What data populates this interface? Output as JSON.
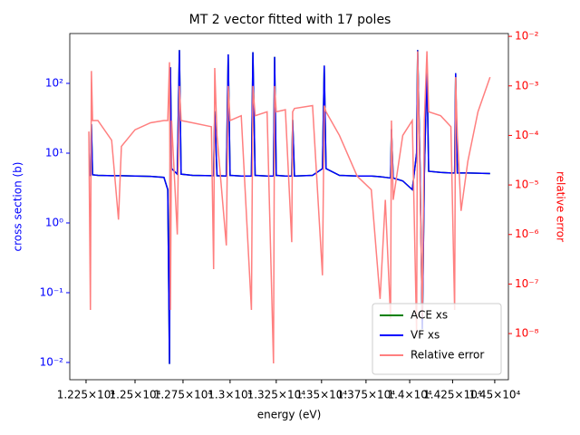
{
  "chart_data": {
    "type": "line",
    "title": "MT 2 vector fitted with 17 poles",
    "xlabel": "energy (eV)",
    "ylabel": "cross section (b)",
    "y2label": "relative error",
    "y_color": "#0000ff",
    "y2_color": "#ff0000",
    "xscale": "log",
    "yscale": "log",
    "y2scale": "log",
    "legend": "lower right",
    "xlim": [
      12168,
      14582
    ],
    "ylim": [
      0.00566,
      518
    ],
    "y2lim": [
      1.17e-09,
      0.0114
    ],
    "xticks": [
      {
        "value": 12250,
        "label": "1.225×10⁴"
      },
      {
        "value": 12500,
        "label": "1.25×10⁴"
      },
      {
        "value": 12750,
        "label": "1.275×10⁴"
      },
      {
        "value": 13000,
        "label": "1.3×10⁴"
      },
      {
        "value": 13250,
        "label": "1.325×10⁴"
      },
      {
        "value": 13500,
        "label": "1.35×10⁴"
      },
      {
        "value": 13750,
        "label": "1.375×10⁴"
      },
      {
        "value": 14000,
        "label": "1.4×10⁴"
      },
      {
        "value": 14250,
        "label": "1.425×10⁴"
      },
      {
        "value": 14500,
        "label": "1.45×10⁴"
      }
    ],
    "yticks": [
      {
        "value": 0.01,
        "label": "10⁻²"
      },
      {
        "value": 0.1,
        "label": "10⁻¹"
      },
      {
        "value": 1,
        "label": "10⁰"
      },
      {
        "value": 10,
        "label": "10¹"
      },
      {
        "value": 100,
        "label": "10²"
      }
    ],
    "y2ticks": [
      {
        "value": 1e-08,
        "label": "10⁻⁸"
      },
      {
        "value": 1e-07,
        "label": "10⁻⁷"
      },
      {
        "value": 1e-06,
        "label": "10⁻⁶"
      },
      {
        "value": 1e-05,
        "label": "10⁻⁵"
      },
      {
        "value": 0.0001,
        "label": "10⁻⁴"
      },
      {
        "value": 0.001,
        "label": "10⁻³"
      },
      {
        "value": 0.01,
        "label": "10⁻²"
      }
    ],
    "x": [
      12264,
      12272,
      12277,
      12283,
      12310,
      12380,
      12415,
      12430,
      12500,
      12580,
      12650,
      12670,
      12679,
      12684,
      12690,
      12720,
      12731,
      12740,
      12800,
      12900,
      12912,
      12918,
      12930,
      12980,
      12990,
      13000,
      13060,
      13115,
      13123,
      13135,
      13200,
      13235,
      13241,
      13250,
      13300,
      13335,
      13340,
      13350,
      13450,
      13505,
      13515,
      13525,
      13600,
      13700,
      13780,
      13830,
      13860,
      13890,
      13895,
      13905,
      13960,
      14015,
      14040,
      14046,
      14060,
      14073,
      14085,
      14100,
      14110,
      14180,
      14240,
      14262,
      14268,
      14278,
      14300,
      14340,
      14400,
      14472
    ],
    "series": [
      {
        "name": "ACE xs",
        "color": "#008000",
        "values": [
          4.8,
          4.8,
          26,
          4.9,
          4.8,
          4.75,
          4.75,
          4.75,
          4.7,
          4.65,
          4.5,
          3.0,
          0.0095,
          170,
          6,
          5,
          300,
          5,
          4.8,
          4.75,
          4.75,
          40,
          4.75,
          4.7,
          260,
          4.8,
          4.7,
          4.7,
          280,
          4.8,
          4.7,
          4.7,
          240,
          4.8,
          4.7,
          4.7,
          30,
          4.7,
          4.8,
          6,
          180,
          6,
          4.8,
          4.7,
          4.7,
          4.6,
          4.5,
          4.4,
          22,
          4.4,
          4.0,
          3.0,
          10,
          300,
          6,
          0.03,
          5,
          180,
          5.5,
          5.3,
          5.2,
          5.2,
          140,
          5.2,
          5.2,
          5.2,
          5.15,
          5.1
        ]
      },
      {
        "name": "VF xs",
        "color": "#0000ff",
        "values": [
          4.8,
          4.8,
          26,
          4.9,
          4.8,
          4.75,
          4.75,
          4.75,
          4.7,
          4.65,
          4.5,
          3.0,
          0.0095,
          170,
          6,
          5,
          300,
          5,
          4.8,
          4.75,
          4.75,
          40,
          4.75,
          4.7,
          260,
          4.8,
          4.7,
          4.7,
          280,
          4.8,
          4.7,
          4.7,
          240,
          4.8,
          4.7,
          4.7,
          30,
          4.7,
          4.8,
          6,
          180,
          6,
          4.8,
          4.7,
          4.7,
          4.6,
          4.5,
          4.4,
          22,
          4.4,
          4.0,
          3.0,
          10,
          300,
          6,
          0.03,
          5,
          180,
          5.5,
          5.3,
          5.2,
          5.2,
          140,
          5.2,
          5.2,
          5.2,
          5.15,
          5.1
        ]
      },
      {
        "name": "Relative error",
        "color": "#ff7f7f",
        "axis": "y2",
        "values": [
          0.00012,
          3e-08,
          0.002,
          0.0002,
          0.0002,
          8e-05,
          2e-06,
          6e-05,
          0.00013,
          0.00018,
          0.0002,
          0.0002,
          0.003,
          3e-08,
          0.0002,
          1e-06,
          0.001,
          0.0002,
          0.00018,
          0.00015,
          2e-07,
          0.0023,
          0.0001,
          6e-07,
          0.001,
          0.0002,
          0.00025,
          3e-08,
          0.001,
          0.00025,
          0.0003,
          2.5e-09,
          0.001,
          0.0003,
          0.00033,
          7e-07,
          0.0003,
          0.00035,
          0.0004,
          1.5e-07,
          0.0004,
          0.0003,
          0.0001,
          1.5e-05,
          8e-06,
          5e-08,
          5e-06,
          2e-08,
          0.0002,
          5e-06,
          0.0001,
          0.0002,
          1e-08,
          0.005,
          1e-05,
          2e-08,
          0.0002,
          0.005,
          0.0003,
          0.00025,
          0.00015,
          3e-08,
          0.0015,
          0.0001,
          3e-06,
          3e-05,
          0.0003,
          0.0015
        ]
      }
    ]
  }
}
